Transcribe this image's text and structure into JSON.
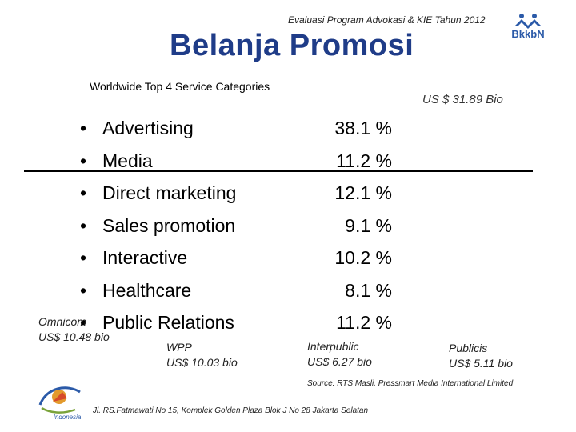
{
  "header": {
    "caption": "Evaluasi Program Advokasi & KIE Tahun 2012",
    "title": "Belanja Promosi",
    "logo_text": "BkkbN"
  },
  "subtitle": "Worldwide Top 4 Service Categories",
  "total_label": "US $ 31.89 Bio",
  "categories": [
    {
      "name": "Advertising",
      "percent": "38.1 %"
    },
    {
      "name": "Media",
      "percent": "11.2 %"
    },
    {
      "name": "Direct marketing",
      "percent": "12.1 %"
    },
    {
      "name": "Sales promotion",
      "percent": "9.1 %"
    },
    {
      "name": "Interactive",
      "percent": "10.2 %"
    },
    {
      "name": "Healthcare",
      "percent": "8.1 %"
    },
    {
      "name": "Public Relations",
      "percent": "11.2 %"
    }
  ],
  "bullet": "•",
  "companies": [
    {
      "name": "Omnicom",
      "value": "US$ 10.48 bio"
    },
    {
      "name": "WPP",
      "value": "US$ 10.03 bio"
    },
    {
      "name": "Interpublic",
      "value": "US$ 6.27 bio"
    },
    {
      "name": "Publicis",
      "value": "US$ 5.11 bio"
    }
  ],
  "source": "Source: RTS Masli, Pressmart Media International Limited",
  "footer": {
    "address": "Jl. RS.Fatmawati No 15, Komplek Golden Plaza Blok J No 28 Jakarta Selatan",
    "logo_text": "Indonesia"
  },
  "colors": {
    "title": "#1f3c88",
    "logo_blue": "#2b5aa8",
    "divider": "#000000"
  }
}
